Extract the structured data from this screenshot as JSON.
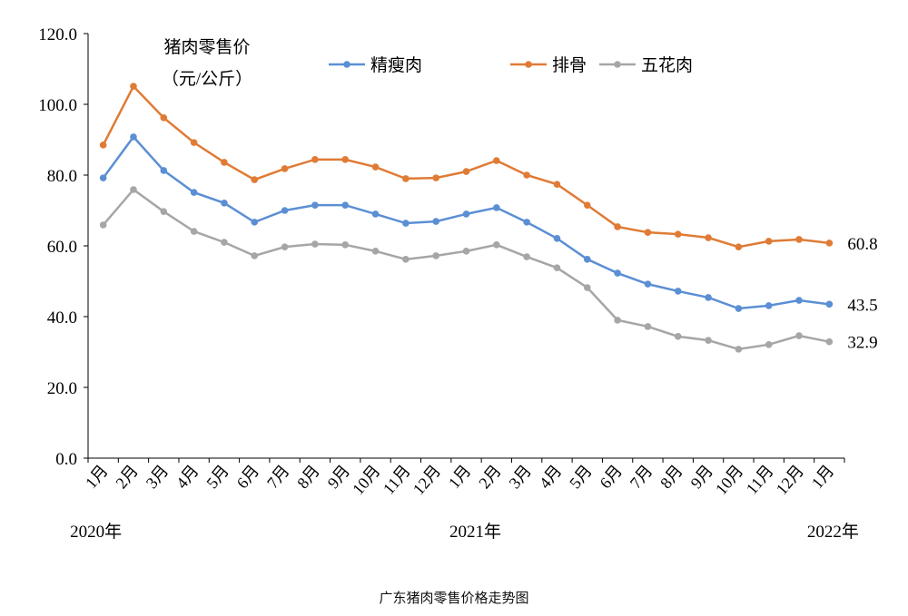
{
  "chart_data": {
    "type": "line",
    "caption": "广东猪肉零售价格走势图",
    "annotation": [
      "猪肉零售价",
      "（元/公斤）"
    ],
    "categories": [
      "1月",
      "2月",
      "3月",
      "4月",
      "5月",
      "6月",
      "7月",
      "8月",
      "9月",
      "10月",
      "11月",
      "12月",
      "1月",
      "2月",
      "3月",
      "4月",
      "5月",
      "6月",
      "7月",
      "8月",
      "9月",
      "10月",
      "11月",
      "12月",
      "1月"
    ],
    "year_labels": [
      {
        "label": "2020年",
        "index": 0
      },
      {
        "label": "2021年",
        "index": 12
      },
      {
        "label": "2022年",
        "index": 24
      }
    ],
    "ylim": [
      0,
      120
    ],
    "yticks": [
      "0.0",
      "20.0",
      "40.0",
      "60.0",
      "80.0",
      "100.0",
      "120.0"
    ],
    "legend_position": "top",
    "grid": false,
    "series": [
      {
        "name": "精瘦肉",
        "color": "#5b8fd4",
        "end_label": "43.5",
        "values": [
          79.2,
          90.8,
          81.3,
          75.1,
          72.1,
          66.7,
          70.0,
          71.5,
          71.5,
          69.0,
          66.4,
          66.9,
          69.0,
          70.8,
          66.7,
          62.1,
          56.2,
          52.3,
          49.2,
          47.2,
          45.4,
          42.3,
          43.1,
          44.6,
          43.5
        ]
      },
      {
        "name": "排骨",
        "color": "#e07b35",
        "end_label": "60.8",
        "values": [
          88.5,
          105.1,
          96.2,
          89.2,
          83.6,
          78.7,
          81.8,
          84.4,
          84.4,
          82.3,
          79.0,
          79.2,
          81.0,
          84.1,
          80.0,
          77.4,
          71.5,
          65.4,
          63.8,
          63.3,
          62.3,
          59.7,
          61.3,
          61.8,
          60.8
        ]
      },
      {
        "name": "五花肉",
        "color": "#a6a6a6",
        "end_label": "32.9",
        "values": [
          65.9,
          75.9,
          69.7,
          64.1,
          61.0,
          57.2,
          59.7,
          60.5,
          60.3,
          58.5,
          56.2,
          57.2,
          58.5,
          60.3,
          56.9,
          53.8,
          48.2,
          39.0,
          37.2,
          34.4,
          33.3,
          30.8,
          32.1,
          34.6,
          32.9
        ]
      }
    ]
  }
}
